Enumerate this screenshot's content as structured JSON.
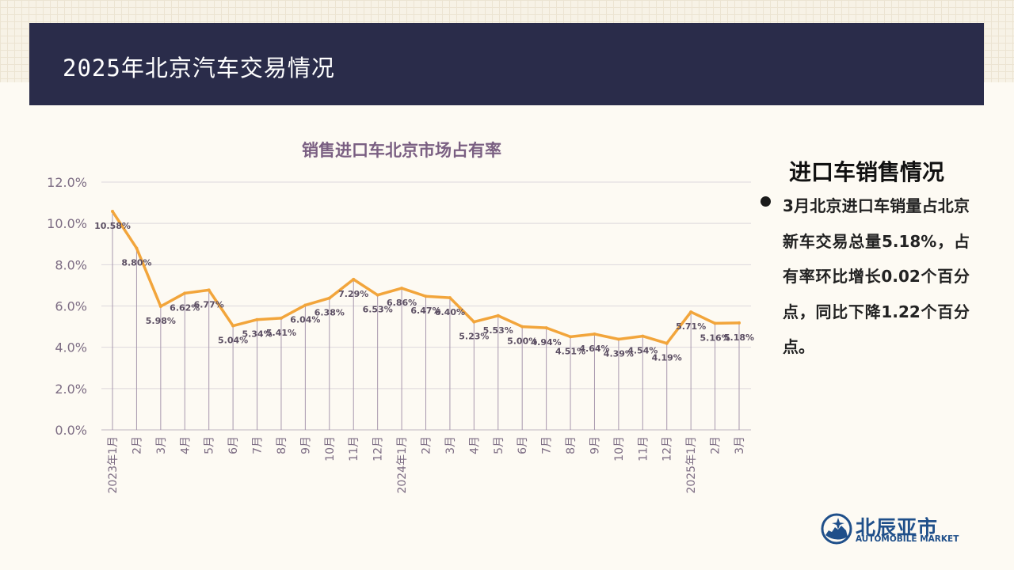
{
  "header": {
    "title": "2025年北京汽车交易情况"
  },
  "side": {
    "title": "进口车销售情况",
    "text": "3月北京进口车销量占北京新车交易总量5.18%，占有率环比增长0.02个百分点，同比下降1.22个百分点。"
  },
  "logo": {
    "cn": "北辰亚市",
    "en": "AUTOMOBILE MARKET"
  },
  "chart_data": {
    "type": "line",
    "title": "销售进口车北京市场占有率",
    "categories": [
      "2023年1月",
      "2月",
      "3月",
      "4月",
      "5月",
      "6月",
      "7月",
      "8月",
      "9月",
      "10月",
      "11月",
      "12月",
      "2024年1月",
      "2月",
      "3月",
      "4月",
      "5月",
      "6月",
      "7月",
      "8月",
      "9月",
      "10月",
      "11月",
      "12月",
      "2025年1月",
      "2月",
      "3月"
    ],
    "values": [
      10.58,
      8.8,
      5.98,
      6.62,
      6.77,
      5.04,
      5.34,
      5.41,
      6.04,
      6.38,
      7.29,
      6.53,
      6.86,
      6.47,
      6.4,
      5.23,
      5.53,
      5.0,
      4.94,
      4.51,
      4.64,
      4.39,
      4.54,
      4.19,
      5.71,
      5.16,
      5.18
    ],
    "labels": [
      "10.58%",
      "8.80%",
      "5.98%",
      "6.62%",
      "6.77%",
      "5.04%",
      "5.34%",
      "5.41%",
      "6.04%",
      "6.38%",
      "7.29%",
      "6.53%",
      "6.86%",
      "6.47%",
      "6.40%",
      "5.23%",
      "5.53%",
      "5.00%",
      "4.94%",
      "4.51%",
      "4.64%",
      "4.39%",
      "4.54%",
      "4.19%",
      "5.71%",
      "5.16%",
      "5.18%"
    ],
    "yticks": [
      "0.0%",
      "2.0%",
      "4.0%",
      "6.0%",
      "8.0%",
      "10.0%",
      "12.0%"
    ],
    "ylim": [
      0,
      12
    ],
    "grid": true,
    "line_color": "#f2a53b",
    "drop_line_color": "#a898ae"
  }
}
